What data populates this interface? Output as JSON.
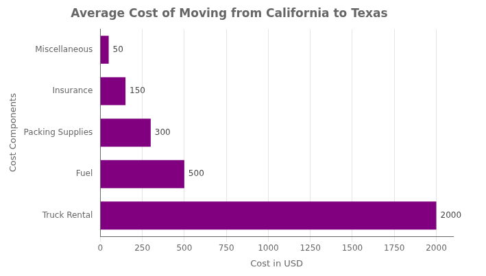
{
  "chart_data": {
    "type": "bar",
    "orientation": "horizontal",
    "title": "Average Cost of Moving from California to Texas",
    "x_label": "Cost in USD",
    "y_label": "Cost Components",
    "categories": [
      "Truck Rental",
      "Fuel",
      "Packing Supplies",
      "Insurance",
      "Miscellaneous"
    ],
    "values": [
      2000,
      500,
      300,
      150,
      50
    ],
    "color": "#800080",
    "xlim": [
      0,
      2100
    ],
    "xticks": [
      0,
      250,
      500,
      750,
      1000,
      1250,
      1500,
      1750,
      2000
    ],
    "grid": true,
    "data_labels": true
  }
}
